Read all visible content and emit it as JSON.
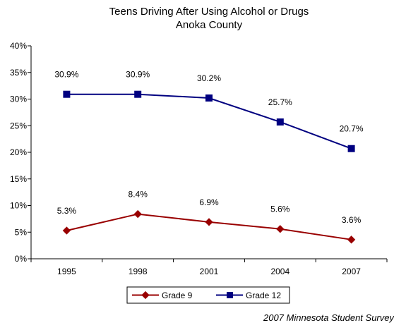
{
  "chart_data": {
    "type": "line",
    "title": "Teens Driving After Using Alcohol or Drugs",
    "subtitle": "Anoka County",
    "categories": [
      "1995",
      "1998",
      "2001",
      "2004",
      "2007"
    ],
    "y_ticks": [
      "0%",
      "5%",
      "10%",
      "15%",
      "20%",
      "25%",
      "30%",
      "35%",
      "40%"
    ],
    "ylim": [
      0,
      40
    ],
    "grid": false,
    "legend_position": "bottom",
    "series": [
      {
        "name": "Grade 9",
        "values": [
          5.3,
          8.4,
          6.9,
          5.6,
          3.6
        ],
        "labels": [
          "5.3%",
          "8.4%",
          "6.9%",
          "5.6%",
          "3.6%"
        ],
        "color": "#990000",
        "marker": "diamond"
      },
      {
        "name": "Grade 12",
        "values": [
          30.9,
          30.9,
          30.2,
          25.7,
          20.7
        ],
        "labels": [
          "30.9%",
          "30.9%",
          "30.2%",
          "25.7%",
          "20.7%"
        ],
        "color": "#000080",
        "marker": "square"
      }
    ]
  },
  "source_note": "2007 Minnesota Student Survey"
}
